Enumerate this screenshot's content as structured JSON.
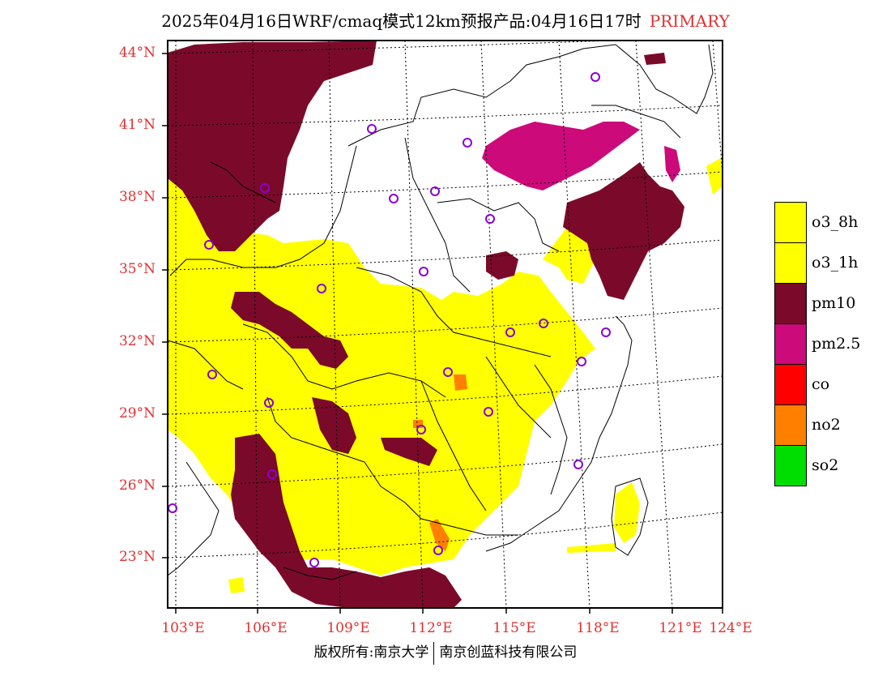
{
  "header": {
    "title": "2025年04月16日WRF/cmaq模式12km预报产品:04月16日17时",
    "tag": "PRIMARY"
  },
  "map": {
    "lat_labels": [
      "44°N",
      "41°N",
      "38°N",
      "35°N",
      "32°N",
      "29°N",
      "26°N",
      "23°N"
    ],
    "lon_labels": [
      "103°E",
      "106°E",
      "109°E",
      "112°E",
      "115°E",
      "118°E",
      "121°E",
      "124°E"
    ],
    "city_marker_color": "#8a00d4"
  },
  "legend": {
    "items": [
      {
        "label": "o3_8h",
        "color": "#ffff00"
      },
      {
        "label": "o3_1h",
        "color": "#ffff00"
      },
      {
        "label": "pm10",
        "color": "#7b0a2a"
      },
      {
        "label": "pm2.5",
        "color": "#cc0a7a"
      },
      {
        "label": "co",
        "color": "#ff0000"
      },
      {
        "label": "no2",
        "color": "#ff8000"
      },
      {
        "label": "so2",
        "color": "#00dd00"
      }
    ]
  },
  "footer": {
    "left": "版权所有:南京大学",
    "right": "南京创蓝科技有限公司"
  }
}
